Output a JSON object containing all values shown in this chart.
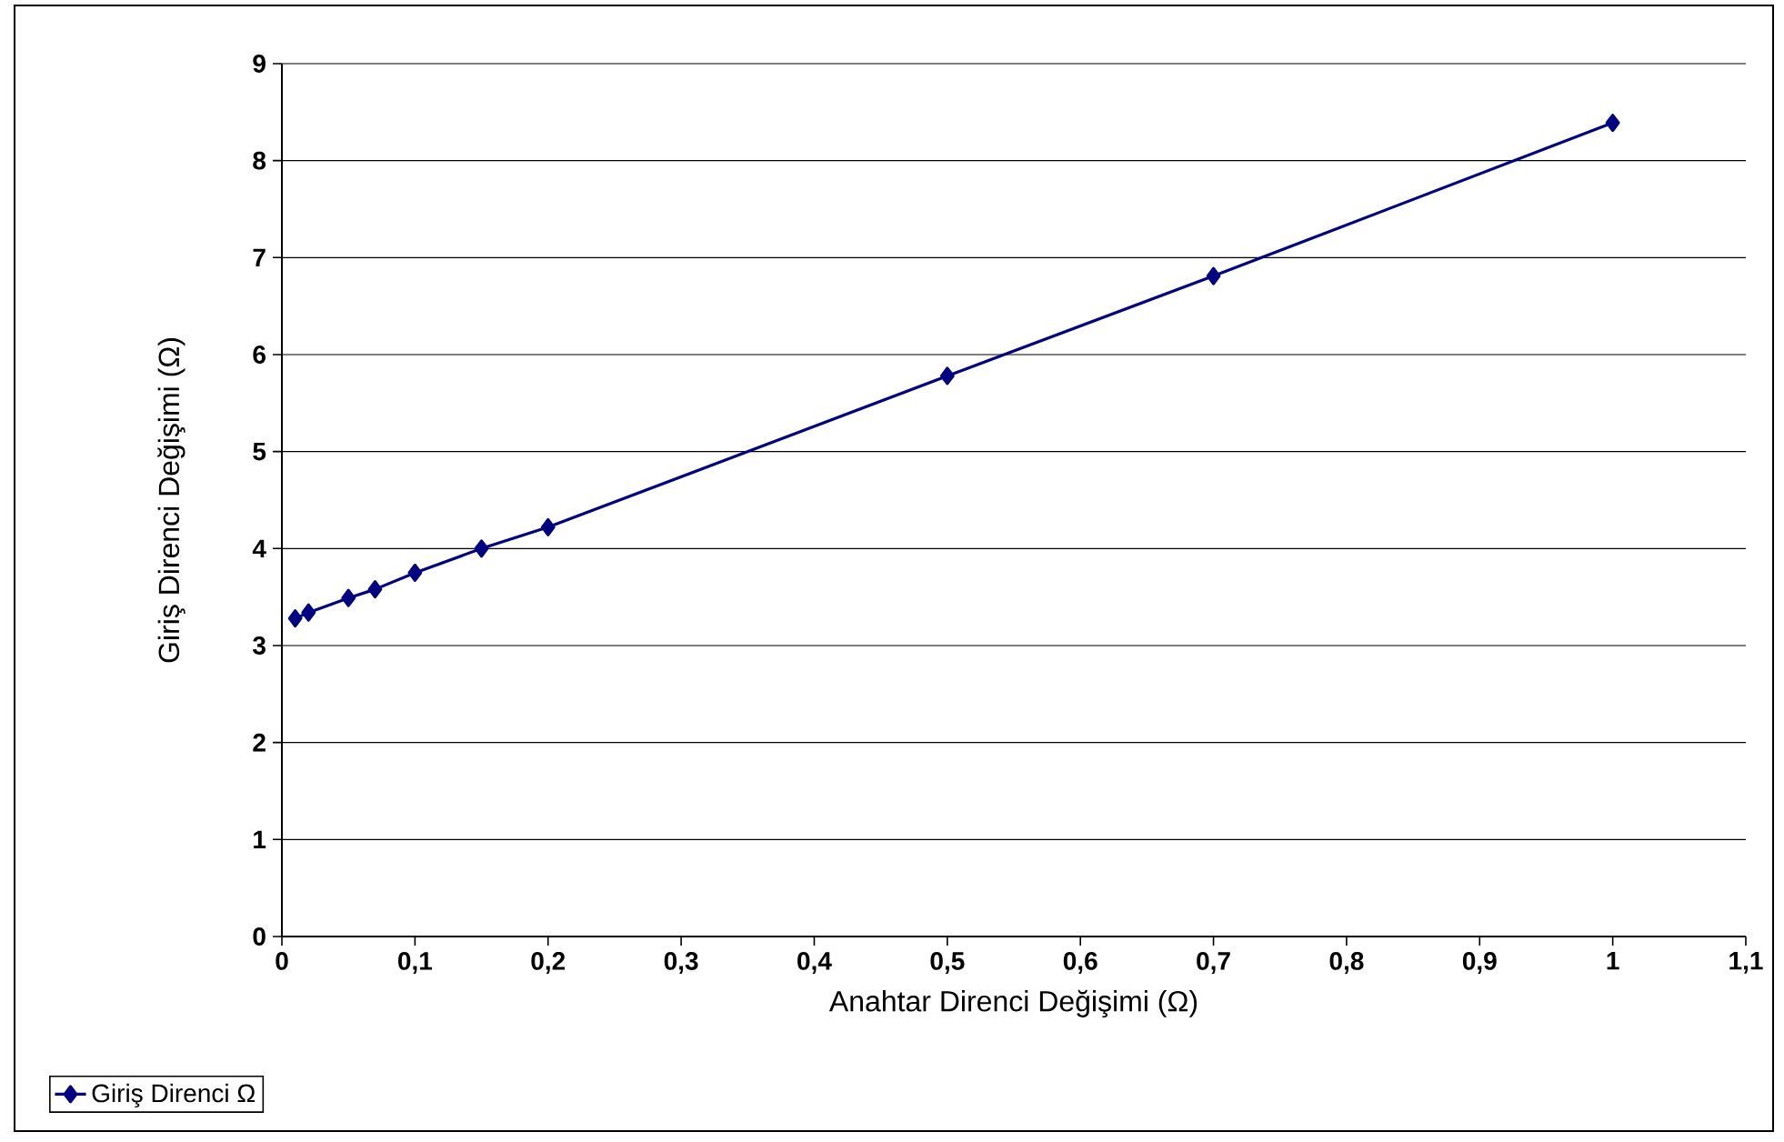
{
  "chart_data": {
    "type": "line",
    "xlabel": "Anahtar Direnci Değişimi (Ω)",
    "ylabel": "Giriş Direnci Değişimi (Ω)",
    "x": [
      0.01,
      0.02,
      0.05,
      0.07,
      0.1,
      0.15,
      0.2,
      0.5,
      0.7,
      1
    ],
    "series": [
      {
        "name": "Giriş Direnci Ω",
        "color": "#000080",
        "values": [
          3.28,
          3.34,
          3.49,
          3.58,
          3.75,
          4.0,
          4.22,
          5.78,
          6.81,
          8.39
        ]
      }
    ],
    "xlim": [
      0,
      1.1
    ],
    "ylim": [
      0,
      9
    ],
    "xticks": [
      0,
      {
        "value": 0.1,
        "label": "0,1"
      },
      {
        "value": 0.2,
        "label": "0,2"
      },
      {
        "value": 0.3,
        "label": "0,3"
      },
      {
        "value": 0.4,
        "label": "0,4"
      },
      {
        "value": 0.5,
        "label": "0,5"
      },
      {
        "value": 0.6,
        "label": "0,6"
      },
      {
        "value": 0.7,
        "label": "0,7"
      },
      {
        "value": 0.8,
        "label": "0,8"
      },
      {
        "value": 0.9,
        "label": "0,9"
      },
      1,
      {
        "value": 1.1,
        "label": "1,1"
      }
    ],
    "yticks": [
      0,
      1,
      2,
      3,
      4,
      5,
      6,
      7,
      8,
      9
    ],
    "grid": "y",
    "legend": "bottom left",
    "marker": "diamond",
    "line_style": "solid"
  }
}
